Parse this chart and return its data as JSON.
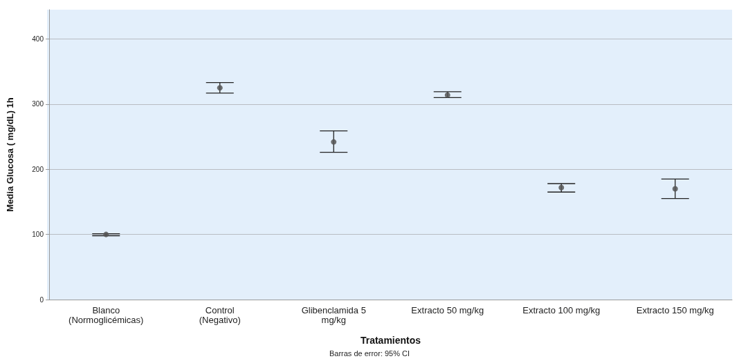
{
  "chart_data": {
    "type": "scatter",
    "xlabel": "Tratamientos",
    "ylabel": "Media Glucosa ( mg/dL) 1h",
    "categories": [
      "Blanco\n(Normoglicémicas)",
      "Control\n(Negativo)",
      "Glibenclamida 5\nmg/kg",
      "Extracto 50 mg/kg",
      "Extracto 100 mg/kg",
      "Extracto 150 mg/kg"
    ],
    "values": [
      100,
      325,
      242,
      314,
      172,
      170
    ],
    "errors": [
      [
        98,
        101
      ],
      [
        317,
        333
      ],
      [
        226,
        259
      ],
      [
        310,
        319
      ],
      [
        165,
        178
      ],
      [
        155,
        185
      ]
    ],
    "color": "#555555",
    "marker": "circle",
    "ylim": [
      0,
      445
    ],
    "yticks": [
      0,
      100,
      200,
      300,
      400
    ],
    "grid": "y",
    "annotations": [
      "Barras de error: 95% CI"
    ]
  }
}
